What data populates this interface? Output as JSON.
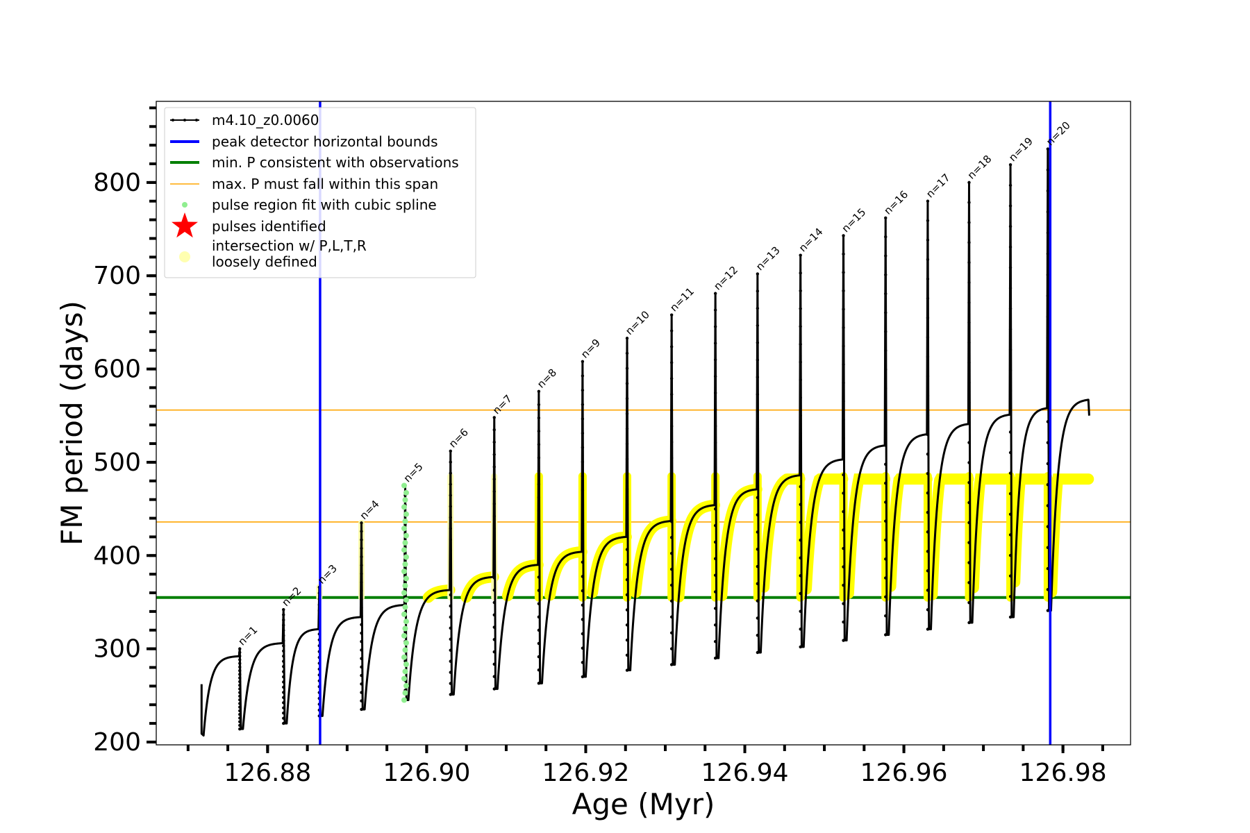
{
  "chart_data": {
    "type": "line",
    "xlabel": "Age (Myr)",
    "ylabel": "FM period (days)",
    "xlim": [
      126.866,
      126.9885
    ],
    "ylim": [
      197,
      887
    ],
    "x_ticks": [
      "126.88",
      "126.90",
      "126.92",
      "126.94",
      "126.96",
      "126.98"
    ],
    "y_ticks": [
      "200",
      "300",
      "400",
      "500",
      "600",
      "700",
      "800"
    ],
    "grid": false,
    "legend_placement": "upper-left",
    "colors": {
      "model": "#000000",
      "bounds": "#0000ff",
      "min_p": "#007f00",
      "max_p": "#ffa500",
      "spline": "#90ee90",
      "pulses": "#ff0000",
      "intersection": "#ffff00",
      "intersection_loose": "#ffffb0"
    },
    "legend": [
      {
        "label": "m4.10_z0.0060",
        "marker": "line-dot",
        "color": "#000000"
      },
      {
        "label": "peak detector horizontal bounds",
        "marker": "line-thick",
        "color": "#0000ff"
      },
      {
        "label": "min. P consistent with observations",
        "marker": "line-thick",
        "color": "#007f00"
      },
      {
        "label": "max. P must fall within this span",
        "marker": "line-thin",
        "color": "#ffa500"
      },
      {
        "label": "pulse region fit with cubic spline",
        "marker": "dot",
        "color": "#90ee90"
      },
      {
        "label": "pulses identified",
        "marker": "star",
        "color": "#ff0000"
      },
      {
        "label_line1": "intersection w/ P,L,T,R",
        "label_line2": "loosely defined",
        "marker": "circle",
        "color": "#ffffb0"
      }
    ],
    "vertical_bounds": [
      126.8866,
      126.9784
    ],
    "min_p": 355,
    "max_p_span": [
      436,
      556
    ],
    "pulse_labels": [
      "n=1",
      "n=2",
      "n=3",
      "n=4",
      "n=5",
      "n=6",
      "n=7",
      "n=8",
      "n=9",
      "n=10",
      "n=11",
      "n=12",
      "n=13",
      "n=14",
      "n=15",
      "n=16",
      "n=17",
      "n=18",
      "n=19",
      "n=20"
    ],
    "series": [
      {
        "name": "m4.10_z0.0060",
        "pulse_x": [
          126.8765,
          126.882,
          126.8865,
          126.8918,
          126.8973,
          126.903,
          126.9085,
          126.9141,
          126.9196,
          126.9252,
          126.9308,
          126.9363,
          126.9416,
          126.947,
          126.9524,
          126.9577,
          126.963,
          126.9682,
          126.9734,
          126.9781
        ],
        "pulse_peak": [
          300,
          342,
          366,
          435,
          475,
          512,
          548,
          576,
          608,
          633,
          658,
          681,
          702,
          722,
          743,
          762,
          780,
          800,
          819,
          836
        ],
        "pulse_min": [
          214,
          220,
          228,
          235,
          245,
          251,
          257,
          263,
          270,
          277,
          283,
          290,
          296,
          302,
          309,
          315,
          321,
          328,
          334,
          341
        ],
        "plateau_max": [
          292,
          306,
          321,
          334,
          347,
          363,
          377,
          390,
          404,
          420,
          437,
          454,
          471,
          486,
          503,
          518,
          530,
          541,
          551,
          558
        ],
        "start": {
          "x": 126.8717,
          "y": 262,
          "min": 207
        },
        "end": {
          "x": 126.9833,
          "plateau": 567,
          "final": 550
        }
      }
    ]
  }
}
